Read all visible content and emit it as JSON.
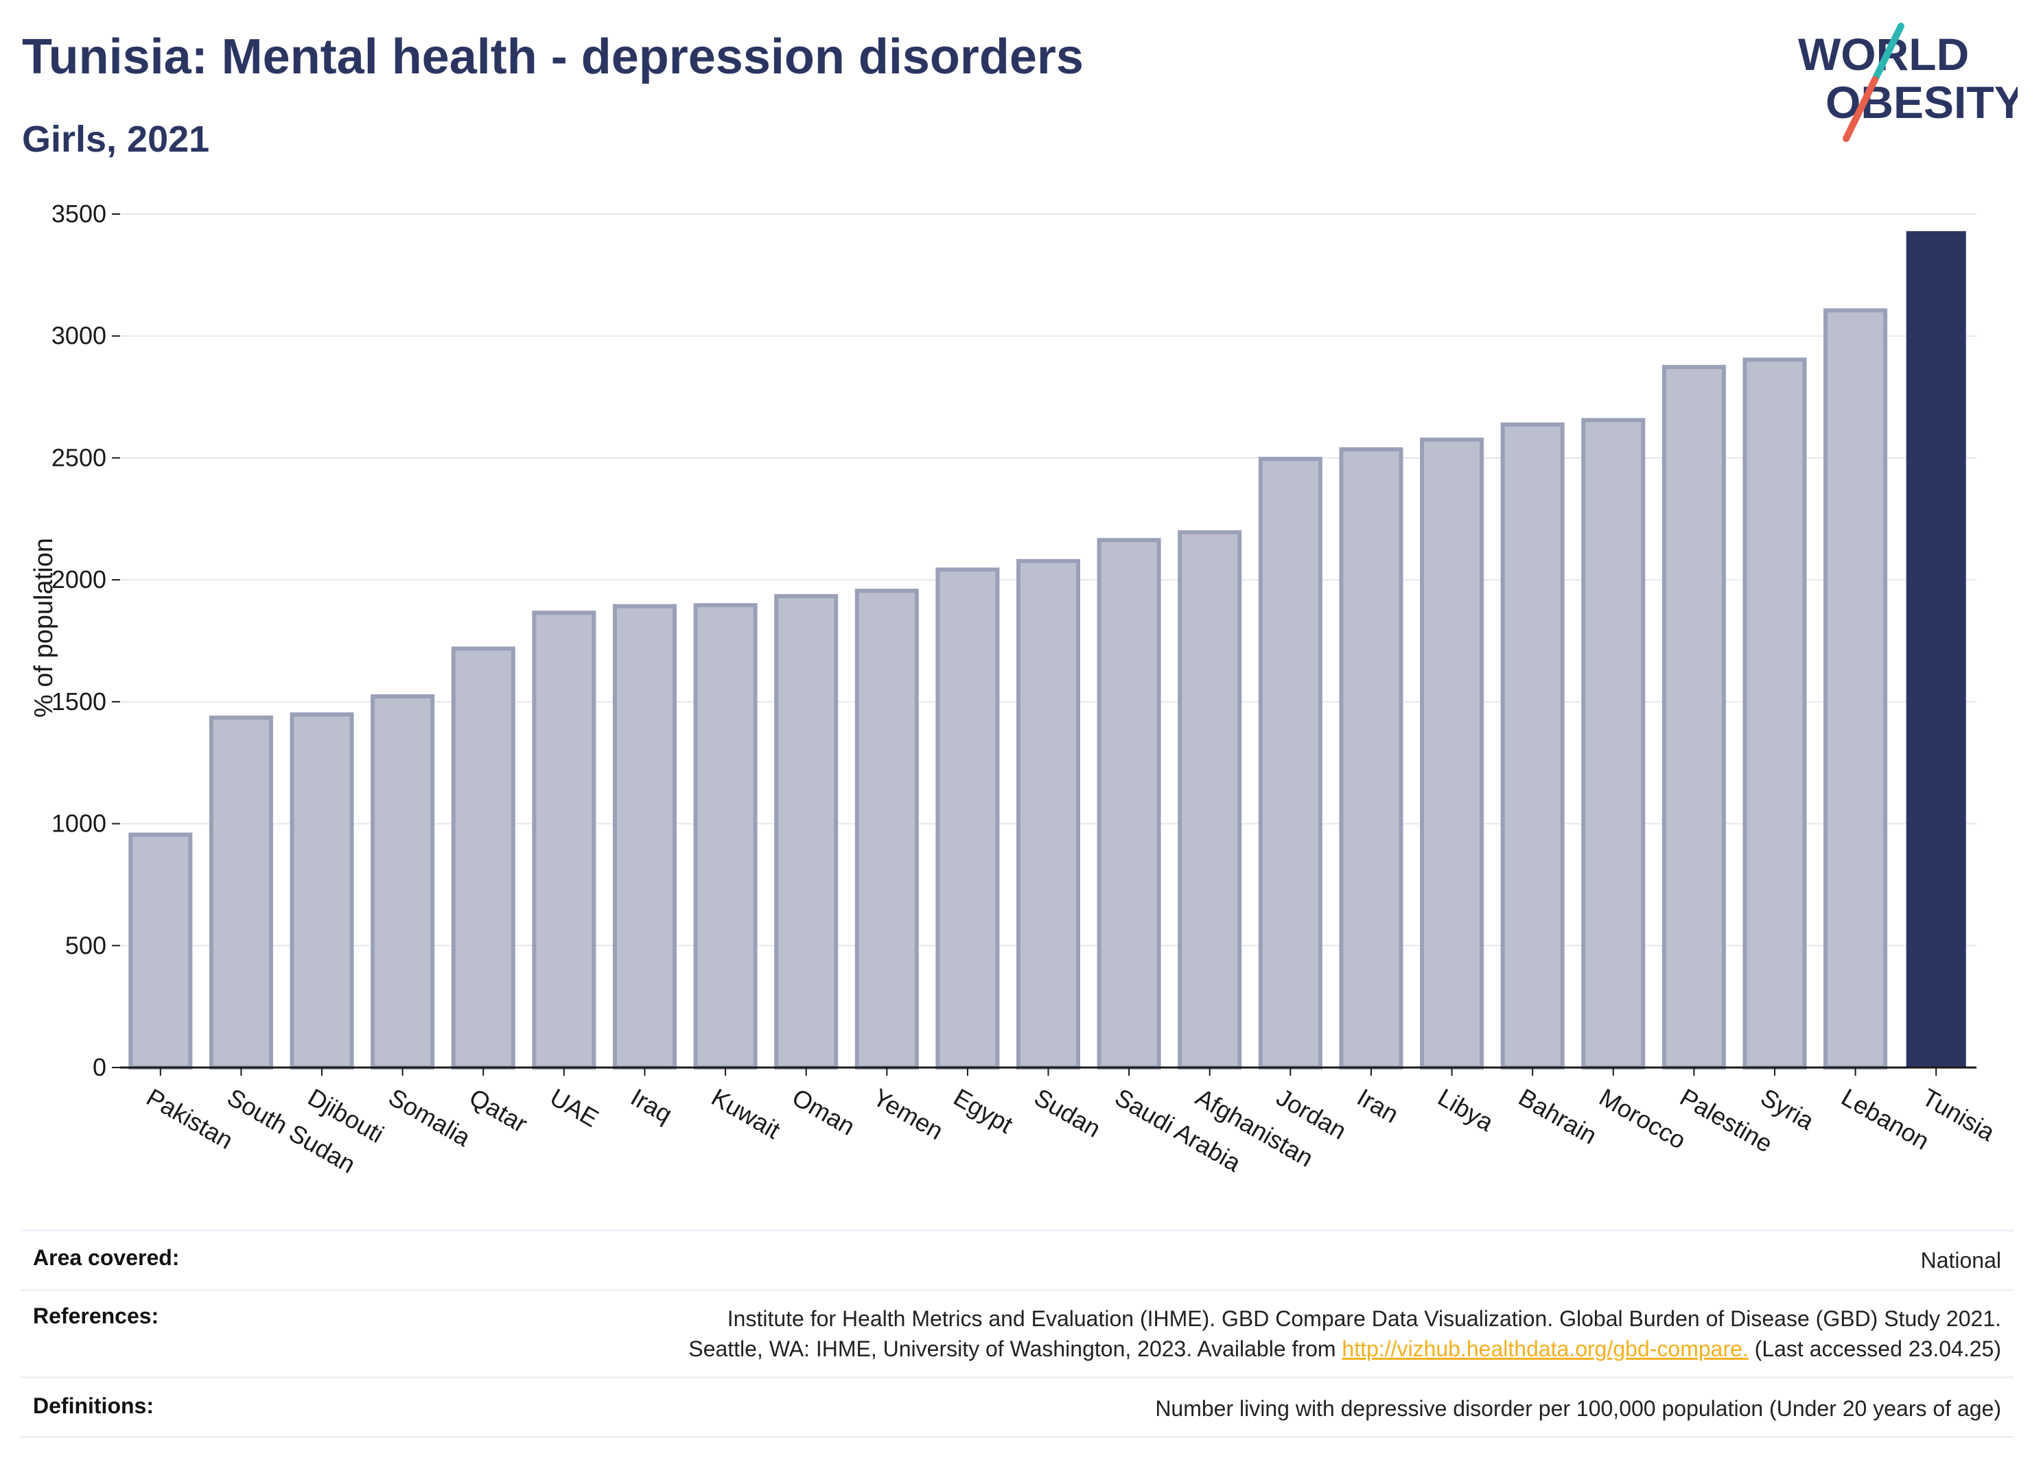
{
  "header": {
    "title": "Tunisia: Mental health - depression disorders",
    "subtitle": "Girls, 2021"
  },
  "logo": {
    "line1": "WORLD",
    "line2": "OBESITY",
    "colors": {
      "text": "#2b3561",
      "slash_teal": "#2bb6b2",
      "slash_red": "#e8604c"
    }
  },
  "chart_data": {
    "type": "bar",
    "ylabel": "% of population",
    "ylim": [
      0,
      3500
    ],
    "yticks": [
      0,
      500,
      1000,
      1500,
      2000,
      2500,
      3000,
      3500
    ],
    "grid": true,
    "categories": [
      "Pakistan",
      "South Sudan",
      "Djibouti",
      "Somalia",
      "Qatar",
      "UAE",
      "Iraq",
      "Kuwait",
      "Oman",
      "Yemen",
      "Egypt",
      "Sudan",
      "Saudi Arabia",
      "Afghanistan",
      "Jordan",
      "Iran",
      "Libya",
      "Bahrain",
      "Morocco",
      "Palestine",
      "Syria",
      "Lebanon",
      "Tunisia"
    ],
    "values": [
      955,
      1435,
      1448,
      1522,
      1718,
      1865,
      1892,
      1896,
      1933,
      1955,
      2042,
      2077,
      2163,
      2195,
      2496,
      2535,
      2575,
      2637,
      2655,
      2873,
      2903,
      3105,
      3430
    ],
    "highlight": "Tunisia",
    "colors": {
      "bar": "#bcc0ce",
      "bar_edge": "#9aa0b8",
      "highlight": "#2b3561"
    }
  },
  "meta": {
    "area_label": "Area covered:",
    "area_value": "National",
    "references_label": "References:",
    "references_line1": "Institute for Health Metrics and Evaluation (IHME). GBD Compare Data Visualization. Global Burden of Disease (GBD) Study 2021.",
    "references_line2_pre": "Seattle, WA: IHME, University of Washington, 2023. Available from ",
    "references_link": "http://vizhub.healthdata.org/gbd-compare.",
    "references_line2_post": " (Last accessed 23.04.25)",
    "definitions_label": "Definitions:",
    "definitions_value": "Number living with depressive disorder per 100,000 population (Under 20 years of age)"
  }
}
